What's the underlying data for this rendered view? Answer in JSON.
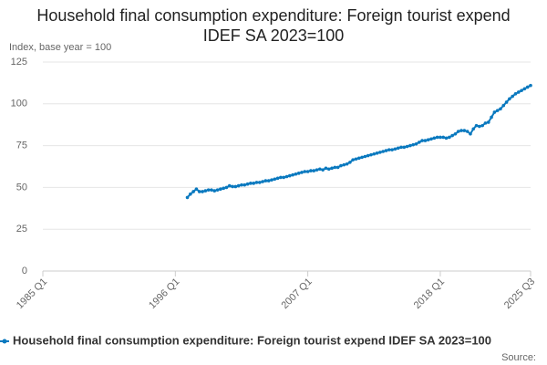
{
  "chart_data": {
    "type": "line",
    "title": "Household final consumption expenditure: Foreign tourist expend IDEF SA 2023=100",
    "y_label": "Index, base year = 100",
    "source": "Source:",
    "xlim": [
      1985,
      2025.5
    ],
    "xticks": [
      {
        "value": 1985,
        "label": "1985 Q1"
      },
      {
        "value": 1996,
        "label": "1996 Q1"
      },
      {
        "value": 2007,
        "label": "2007 Q1"
      },
      {
        "value": 2018,
        "label": "2018 Q1"
      },
      {
        "value": 2025.5,
        "label": "2025 Q3"
      }
    ],
    "ylim": [
      0,
      125
    ],
    "yticks": [
      0,
      25,
      50,
      75,
      100,
      125
    ],
    "grid": true,
    "x": [
      1997,
      1997.25,
      1997.5,
      1997.75,
      1998,
      1998.25,
      1998.5,
      1998.75,
      1999,
      1999.25,
      1999.5,
      1999.75,
      2000,
      2000.25,
      2000.5,
      2000.75,
      2001,
      2001.25,
      2001.5,
      2001.75,
      2002,
      2002.25,
      2002.5,
      2002.75,
      2003,
      2003.25,
      2003.5,
      2003.75,
      2004,
      2004.25,
      2004.5,
      2004.75,
      2005,
      2005.25,
      2005.5,
      2005.75,
      2006,
      2006.25,
      2006.5,
      2006.75,
      2007,
      2007.25,
      2007.5,
      2007.75,
      2008,
      2008.25,
      2008.5,
      2008.75,
      2009,
      2009.25,
      2009.5,
      2009.75,
      2010,
      2010.25,
      2010.5,
      2010.75,
      2011,
      2011.25,
      2011.5,
      2011.75,
      2012,
      2012.25,
      2012.5,
      2012.75,
      2013,
      2013.25,
      2013.5,
      2013.75,
      2014,
      2014.25,
      2014.5,
      2014.75,
      2015,
      2015.25,
      2015.5,
      2015.75,
      2016,
      2016.25,
      2016.5,
      2016.75,
      2017,
      2017.25,
      2017.5,
      2017.75,
      2018,
      2018.25,
      2018.5,
      2018.75,
      2019,
      2019.25,
      2019.5,
      2019.75,
      2020,
      2020.25,
      2020.5,
      2020.75,
      2021,
      2021.25,
      2021.5,
      2021.75,
      2022,
      2022.25,
      2022.5,
      2022.75,
      2023,
      2023.25,
      2023.5,
      2023.75,
      2024,
      2024.25,
      2024.5,
      2024.75,
      2025,
      2025.25,
      2025.5
    ],
    "series": [
      {
        "name": "Household final consumption expenditure: Foreign tourist expend IDEF SA 2023=100",
        "color": "#0a79bf",
        "values": [
          44,
          46,
          47.5,
          49,
          47.5,
          47.5,
          48,
          48.5,
          48.5,
          48,
          48.5,
          49,
          49.5,
          50,
          51,
          50.5,
          50.5,
          51,
          51.5,
          51.5,
          52,
          52.5,
          52.5,
          53,
          53,
          53.5,
          54,
          54,
          54.5,
          55,
          55.5,
          56,
          56,
          56.5,
          57,
          57.5,
          58,
          58.5,
          59,
          59.5,
          59.5,
          60,
          60,
          60.5,
          61,
          60.5,
          61.5,
          61,
          61.5,
          62,
          62,
          63,
          63.5,
          64,
          65,
          66.5,
          67,
          67.5,
          68,
          68.5,
          69,
          69.5,
          70,
          70.5,
          71,
          71.5,
          72,
          72.5,
          72.5,
          73,
          73.5,
          74,
          74,
          74.5,
          75,
          75.5,
          76,
          77,
          78,
          78,
          78.5,
          79,
          79.5,
          80,
          80,
          80,
          79.5,
          80,
          81,
          82,
          83.5,
          84,
          84,
          83.5,
          82,
          85,
          87,
          86.5,
          87,
          88.5,
          89,
          92,
          95,
          96,
          97,
          99,
          101,
          103,
          104.5,
          106,
          107,
          108,
          109,
          110,
          111
        ]
      }
    ]
  }
}
